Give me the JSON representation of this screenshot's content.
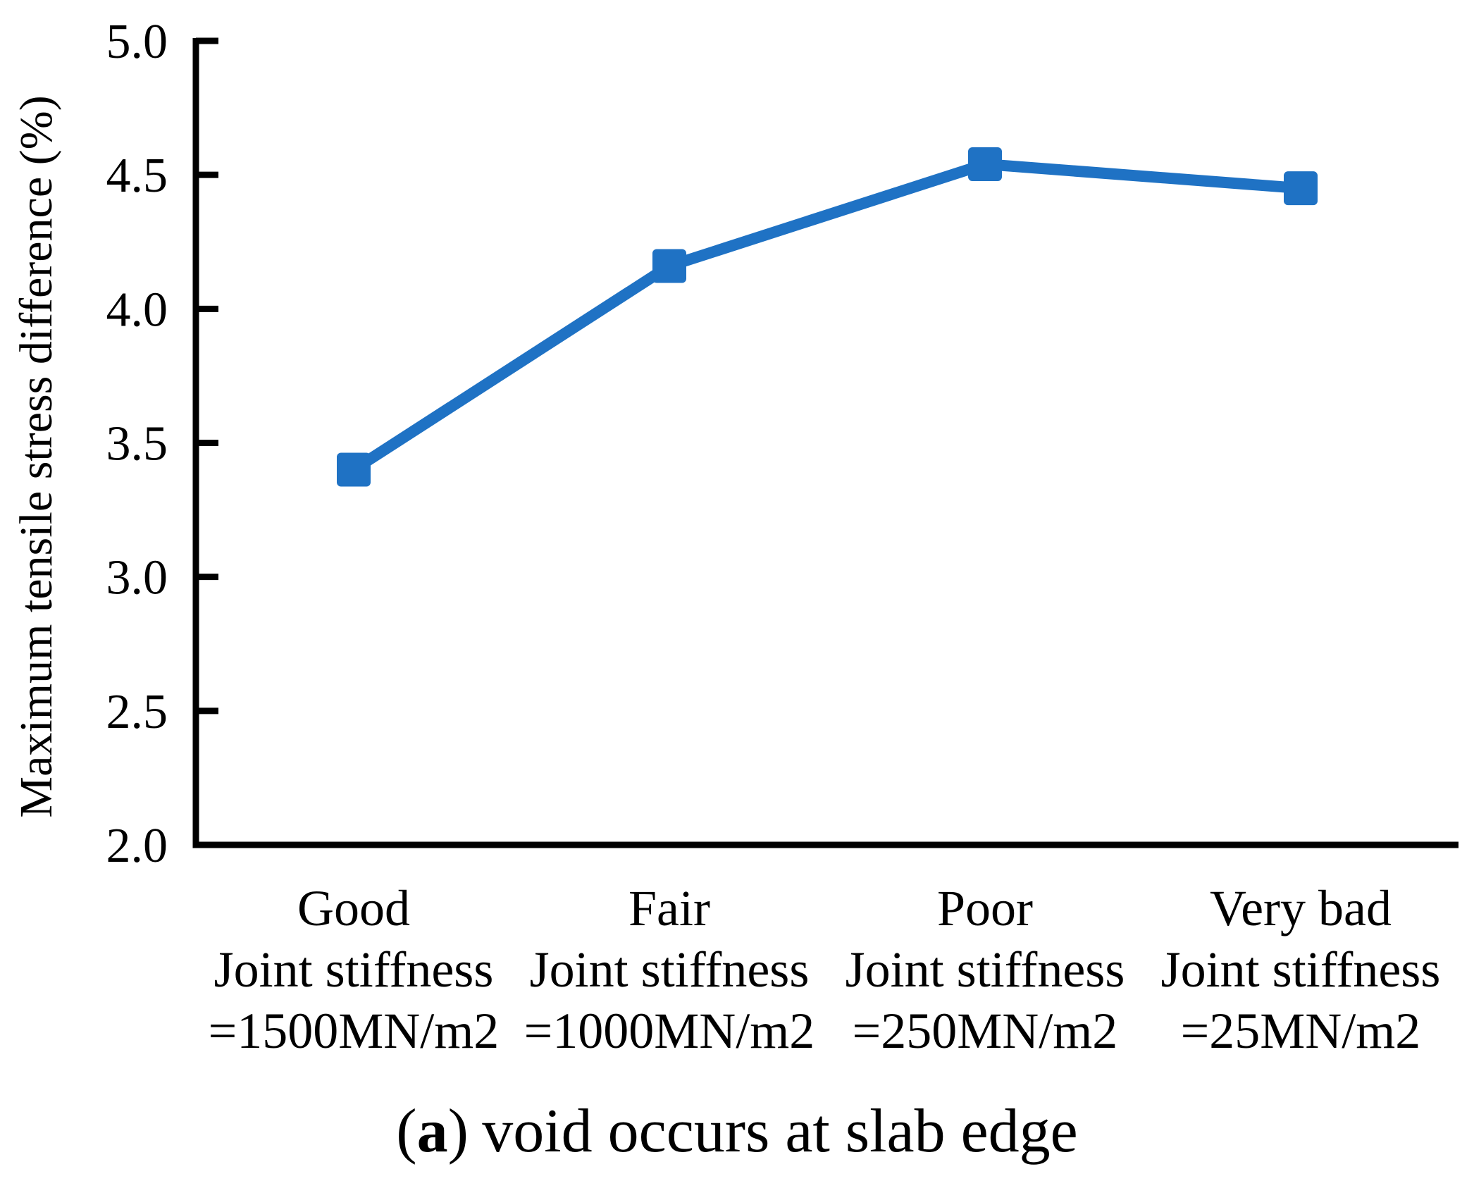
{
  "figure": {
    "background": "#ffffff",
    "text_color": "#000000"
  },
  "chart_data": {
    "type": "line",
    "title": "",
    "xlabel": "",
    "ylabel": "Maximum tensile stress difference (%)",
    "ylim": [
      2.0,
      5.0
    ],
    "yticks": [
      5.0,
      4.5,
      4.0,
      3.5,
      3.0,
      2.5,
      2.0
    ],
    "ytick_labels": [
      "5.0",
      "4.5",
      "4.0",
      "3.5",
      "3.0",
      "2.5",
      "2.0"
    ],
    "categories": [
      [
        "Good",
        "Joint stiffness",
        "=1500MN/m2"
      ],
      [
        "Fair",
        "Joint stiffness",
        "=1000MN/m2"
      ],
      [
        "Poor",
        "Joint stiffness",
        "=250MN/m2"
      ],
      [
        "Very bad",
        "Joint stiffness",
        "=25MN/m2"
      ]
    ],
    "series": [
      {
        "name": "maximum tensile stress difference",
        "values": [
          3.4,
          4.16,
          4.54,
          4.45
        ],
        "color": "#1F72C4",
        "marker": "square"
      }
    ],
    "grid": false,
    "legend": "none"
  },
  "caption": {
    "parts": [
      "(",
      "a",
      ")"
    ],
    "text": "void occurs at slab edge"
  }
}
